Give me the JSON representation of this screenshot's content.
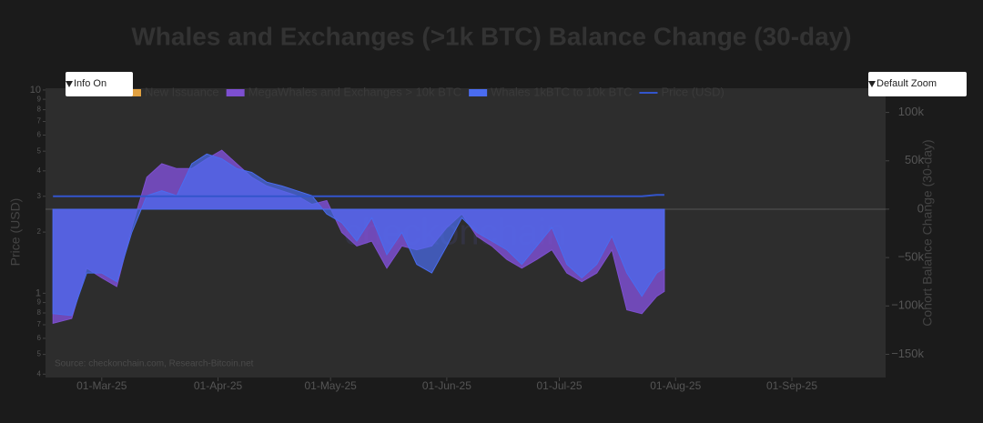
{
  "chart_data": {
    "type": "area",
    "title": "Whales and Exchanges (>1k BTC) Balance Change (30-day)",
    "buttons": [
      "Info On",
      "Default Zoom"
    ],
    "source": "Source: checkonchain.com, Research-Bitcoin.net",
    "watermark": "checkonchain",
    "ylabel": "Price (USD)",
    "y2label": "Cohort Balance Change (30-day)",
    "log_y": true,
    "legend_only": {
      "name": "New Issuance",
      "color": "#e0a040"
    },
    "x": [
      "2025-02-16",
      "2025-02-21",
      "2025-02-25",
      "2025-03-01",
      "2025-03-05",
      "2025-03-09",
      "2025-03-13",
      "2025-03-17",
      "2025-03-21",
      "2025-03-25",
      "2025-03-29",
      "2025-04-02",
      "2025-04-06",
      "2025-04-10",
      "2025-04-14",
      "2025-04-18",
      "2025-04-22",
      "2025-04-26",
      "2025-04-30",
      "2025-05-04",
      "2025-05-08",
      "2025-05-12",
      "2025-05-16",
      "2025-05-20",
      "2025-05-24",
      "2025-05-28",
      "2025-06-01",
      "2025-06-05",
      "2025-06-09",
      "2025-06-13",
      "2025-06-17",
      "2025-06-21",
      "2025-06-25",
      "2025-06-29",
      "2025-07-03",
      "2025-07-07",
      "2025-07-11",
      "2025-07-15",
      "2025-07-19",
      "2025-07-23",
      "2025-07-27",
      "2025-07-29"
    ],
    "series": [
      {
        "name": "MegaWhales and Exchanges > 10k BTC",
        "color": "#7d4fd0",
        "axis": "y2",
        "values": [
          -118000,
          -113000,
          -61000,
          -71000,
          -80000,
          -19000,
          33000,
          47000,
          42000,
          42000,
          52000,
          61000,
          47000,
          33000,
          24000,
          19000,
          14000,
          5000,
          9000,
          -24000,
          -38000,
          -33000,
          -61000,
          -38000,
          -42000,
          -38000,
          -19000,
          -5000,
          -28000,
          -38000,
          -52000,
          -61000,
          -52000,
          -42000,
          -66000,
          -75000,
          -66000,
          -42000,
          -104000,
          -108000,
          -90000,
          -85000
        ]
      },
      {
        "name": "Whales 1kBTC to 10k BTC",
        "color": "#4a6cf0",
        "axis": "y2",
        "values": [
          -108000,
          -110000,
          -66000,
          -66000,
          -75000,
          -24000,
          14000,
          19000,
          14000,
          47000,
          57000,
          52000,
          42000,
          38000,
          28000,
          24000,
          19000,
          14000,
          -5000,
          -14000,
          -33000,
          -9000,
          -47000,
          -24000,
          -57000,
          -66000,
          -38000,
          -9000,
          -24000,
          -33000,
          -42000,
          -57000,
          -38000,
          -19000,
          -57000,
          -71000,
          -57000,
          -28000,
          -66000,
          -90000,
          -66000,
          -61000
        ]
      },
      {
        "name": "Price (USD)",
        "color": "#3355cc",
        "axis": "y",
        "values": [
          3,
          3,
          3,
          3,
          3,
          3,
          3,
          3,
          3,
          3,
          3,
          3,
          3,
          3,
          3,
          3,
          3,
          3,
          3,
          3,
          3,
          3,
          3,
          3,
          3,
          3,
          3,
          3,
          3,
          3,
          3,
          3,
          3,
          3,
          3,
          3,
          3,
          3,
          3,
          3,
          3.05,
          3.05
        ]
      }
    ],
    "xlim": [
      "2025-02-14",
      "2025-09-26"
    ],
    "xticks": [
      {
        "value": "2025-03-01",
        "label": "01-Mar-25"
      },
      {
        "value": "2025-04-01",
        "label": "01-Apr-25"
      },
      {
        "value": "2025-05-01",
        "label": "01-May-25"
      },
      {
        "value": "2025-06-01",
        "label": "01-Jun-25"
      },
      {
        "value": "2025-07-01",
        "label": "01-Jul-25"
      },
      {
        "value": "2025-08-01",
        "label": "01-Aug-25"
      },
      {
        "value": "2025-09-01",
        "label": "01-Sep-25"
      }
    ],
    "ylim": [
      0.385,
      10.2
    ],
    "yticks": [
      10,
      9,
      8,
      7,
      6,
      5,
      4,
      3,
      2,
      1,
      {
        "value": 0.9,
        "label": "9"
      },
      {
        "value": 0.8,
        "label": "8"
      },
      {
        "value": 0.7,
        "label": "7"
      },
      {
        "value": 0.6,
        "label": "6"
      },
      {
        "value": 0.5,
        "label": "5"
      },
      {
        "value": 0.4,
        "label": "4"
      }
    ],
    "y2lim": [
      -174000,
      125000
    ],
    "y2ticks": [
      {
        "value": 100000,
        "label": "100k"
      },
      {
        "value": 50000,
        "label": "50k"
      },
      0,
      {
        "value": -50000,
        "label": "−50k"
      },
      {
        "value": -100000,
        "label": "−100k"
      },
      {
        "value": -150000,
        "label": "−150k"
      }
    ]
  }
}
